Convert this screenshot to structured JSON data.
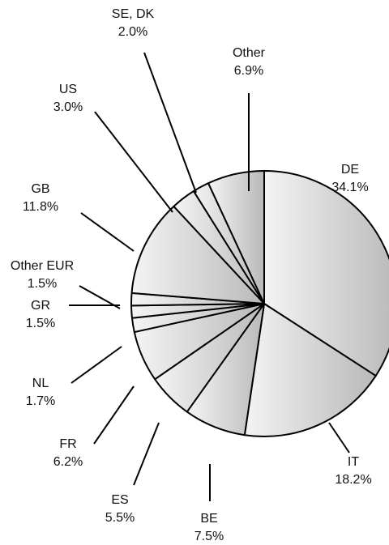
{
  "chart_data": {
    "type": "pie",
    "title": "",
    "slices": [
      {
        "label": "DE",
        "value_label": "34.1%",
        "value": 34.1
      },
      {
        "label": "IT",
        "value_label": "18.2%",
        "value": 18.2
      },
      {
        "label": "BE",
        "value_label": "7.5%",
        "value": 7.5
      },
      {
        "label": "ES",
        "value_label": "5.5%",
        "value": 5.5
      },
      {
        "label": "FR",
        "value_label": "6.2%",
        "value": 6.2
      },
      {
        "label": "NL",
        "value_label": "1.7%",
        "value": 1.7
      },
      {
        "label": "GR",
        "value_label": "1.5%",
        "value": 1.5
      },
      {
        "label": "Other EUR",
        "value_label": "1.5%",
        "value": 1.5
      },
      {
        "label": "GB",
        "value_label": "11.8%",
        "value": 11.8
      },
      {
        "label": "US",
        "value_label": "3.0%",
        "value": 3.0
      },
      {
        "label": "SE, DK",
        "value_label": "2.0%",
        "value": 2.0
      },
      {
        "label": "Other",
        "value_label": "6.9%",
        "value": 6.9
      }
    ],
    "start_angle": "12 o'clock",
    "direction": "clockwise",
    "colors": {
      "stroke": "#000000",
      "fill_dark": "#b4b4b4",
      "fill_light": "#ffffff",
      "text": "#111111"
    }
  }
}
